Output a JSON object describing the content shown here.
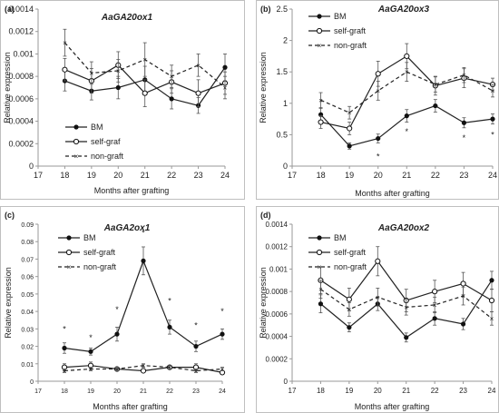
{
  "chart_data": [
    {
      "panel": "(a)",
      "type": "line",
      "title": "AaGA20ox1",
      "xlabel": "Months after grafting",
      "ylabel": "Relative expression",
      "xlim": [
        17,
        24
      ],
      "x_ticks": [
        17,
        18,
        19,
        20,
        21,
        22,
        23,
        24
      ],
      "x": [
        18,
        19,
        20,
        21,
        22,
        23,
        24
      ],
      "ylim": [
        0,
        0.0014
      ],
      "y_ticks": [
        0,
        0.0002,
        0.0004,
        0.0006,
        0.0008,
        0.001,
        0.0012,
        0.0014
      ],
      "y_tick_labels": [
        "0",
        "0.0002",
        "0.0004",
        "0.0006",
        "0.0008",
        "0.001",
        "0.0012",
        "0.0014"
      ],
      "legend": "bottom-left",
      "series": [
        {
          "name": "BM",
          "style": "filled",
          "values": [
            0.00076,
            0.00067,
            0.0007,
            0.00077,
            0.0006,
            0.00054,
            0.00088
          ],
          "errors": [
            9e-05,
            8e-05,
            0.0001,
            0.00012,
            9e-05,
            7e-05,
            0.00012
          ]
        },
        {
          "name": "self-graf",
          "style": "open",
          "values": [
            0.00086,
            0.00076,
            0.0009,
            0.00065,
            0.00075,
            0.00065,
            0.00074
          ],
          "errors": [
            0.0001,
            0.00011,
            0.00012,
            0.00012,
            0.0001,
            0.00012,
            0.0001
          ]
        },
        {
          "name": "non-graft",
          "style": "dash",
          "values": [
            0.0011,
            0.00083,
            0.00085,
            0.00095,
            0.0008,
            0.0009,
            0.0007
          ],
          "errors": [
            0.00012,
            0.0001,
            0.0001,
            0.00015,
            0.0001,
            0.0001,
            0.0001
          ]
        }
      ],
      "annotations": []
    },
    {
      "panel": "(b)",
      "type": "line",
      "title": "AaGA20ox3",
      "xlabel": "Months after grafting",
      "ylabel": "Relative expression",
      "xlim": [
        17,
        24
      ],
      "x_ticks": [
        17,
        18,
        19,
        20,
        21,
        22,
        23,
        24
      ],
      "x": [
        18,
        19,
        20,
        21,
        22,
        23,
        24
      ],
      "ylim": [
        0,
        2.5
      ],
      "y_ticks": [
        0,
        0.5,
        1,
        1.5,
        2,
        2.5
      ],
      "y_tick_labels": [
        "0",
        "0.5",
        "1",
        "1.5",
        "2",
        "2.5"
      ],
      "legend": "top-left",
      "series": [
        {
          "name": "BM",
          "style": "filled",
          "values": [
            0.82,
            0.32,
            0.44,
            0.8,
            0.96,
            0.69,
            0.75
          ],
          "errors": [
            0.1,
            0.05,
            0.07,
            0.1,
            0.1,
            0.08,
            0.08
          ]
        },
        {
          "name": "self-graft",
          "style": "open",
          "values": [
            0.7,
            0.6,
            1.47,
            1.75,
            1.28,
            1.4,
            1.3
          ],
          "errors": [
            0.1,
            0.1,
            0.2,
            0.2,
            0.15,
            0.15,
            0.1
          ]
        },
        {
          "name": "non-graft",
          "style": "dash",
          "values": [
            1.05,
            0.85,
            1.2,
            1.5,
            1.3,
            1.45,
            1.2
          ],
          "errors": [
            0.12,
            0.1,
            0.15,
            0.15,
            0.12,
            0.12,
            0.1
          ]
        }
      ],
      "annotations": [
        {
          "text": "*",
          "x": 20,
          "y": 0.15
        },
        {
          "text": "*",
          "x": 21,
          "y": 0.55
        },
        {
          "text": "*",
          "x": 23,
          "y": 0.45
        },
        {
          "text": "*",
          "x": 24,
          "y": 0.5
        }
      ]
    },
    {
      "panel": "(c)",
      "type": "line",
      "title": "AaGA2ox1",
      "xlabel": "Months after grafting",
      "ylabel": "Relative expression",
      "xlim": [
        17,
        24
      ],
      "x_ticks": [
        17,
        18,
        19,
        20,
        21,
        22,
        23,
        24
      ],
      "x": [
        18,
        19,
        20,
        21,
        22,
        23,
        24
      ],
      "ylim": [
        0,
        0.09
      ],
      "y_ticks": [
        0,
        0.01,
        0.02,
        0.03,
        0.04,
        0.05,
        0.06,
        0.07,
        0.08,
        0.09
      ],
      "y_tick_labels": [
        "0",
        "0.01",
        "0.02",
        "0.03",
        "0.04",
        "0.05",
        "0.06",
        "0.07",
        "0.08",
        "0.09"
      ],
      "legend": "top-left",
      "series": [
        {
          "name": "BM",
          "style": "filled",
          "values": [
            0.019,
            0.017,
            0.027,
            0.069,
            0.031,
            0.02,
            0.027
          ],
          "errors": [
            0.003,
            0.002,
            0.004,
            0.008,
            0.004,
            0.003,
            0.003
          ]
        },
        {
          "name": "self-graft",
          "style": "open",
          "values": [
            0.008,
            0.009,
            0.007,
            0.006,
            0.008,
            0.008,
            0.005
          ],
          "errors": [
            0.002,
            0.002,
            0.001,
            0.001,
            0.001,
            0.002,
            0.001
          ]
        },
        {
          "name": "non-graft",
          "style": "dash",
          "values": [
            0.006,
            0.007,
            0.007,
            0.009,
            0.008,
            0.006,
            0.007
          ],
          "errors": [
            0.001,
            0.001,
            0.001,
            0.001,
            0.001,
            0.001,
            0.001
          ]
        }
      ],
      "annotations": [
        {
          "text": "*",
          "x": 18,
          "y": 0.03
        },
        {
          "text": "*",
          "x": 19,
          "y": 0.025
        },
        {
          "text": "*",
          "x": 20,
          "y": 0.041
        },
        {
          "text": "*",
          "x": 21,
          "y": 0.085
        },
        {
          "text": "*",
          "x": 22,
          "y": 0.046
        },
        {
          "text": "*",
          "x": 23,
          "y": 0.032
        },
        {
          "text": "*",
          "x": 24,
          "y": 0.04
        }
      ]
    },
    {
      "panel": "(d)",
      "type": "line",
      "title": "AaGA20ox2",
      "xlabel": "Months after grafting",
      "ylabel": "Relative expression",
      "xlim": [
        17,
        24
      ],
      "x_ticks": [
        17,
        18,
        19,
        20,
        21,
        22,
        23,
        24
      ],
      "x": [
        18,
        19,
        20,
        21,
        22,
        23,
        24
      ],
      "ylim": [
        0,
        0.0014
      ],
      "y_ticks": [
        0,
        0.0002,
        0.0004,
        0.0006,
        0.0008,
        0.001,
        0.0012,
        0.0014
      ],
      "y_tick_labels": [
        "0",
        "0.0002",
        "0.0004",
        "0.0006",
        "0.0008",
        "0.001",
        "0.0012",
        "0.0014"
      ],
      "legend": "top-left",
      "series": [
        {
          "name": "BM",
          "style": "filled",
          "values": [
            0.00069,
            0.00048,
            0.00069,
            0.00039,
            0.00056,
            0.00051,
            0.0009
          ],
          "errors": [
            8e-05,
            4e-05,
            6e-05,
            4e-05,
            6e-05,
            5e-05,
            8e-05
          ]
        },
        {
          "name": "self-graft",
          "style": "open",
          "values": [
            0.0009,
            0.00073,
            0.00107,
            0.00072,
            0.0008,
            0.00087,
            0.00072
          ],
          "errors": [
            0.00012,
            0.0001,
            0.00013,
            0.0001,
            0.0001,
            0.0001,
            0.0001
          ]
        },
        {
          "name": "non-graft",
          "style": "dash",
          "values": [
            0.00082,
            0.00064,
            0.00075,
            0.00066,
            0.00068,
            0.00076,
            0.00056
          ],
          "errors": [
            8e-05,
            6e-05,
            8e-05,
            7e-05,
            7e-05,
            8e-05,
            6e-05
          ]
        }
      ],
      "annotations": []
    }
  ]
}
